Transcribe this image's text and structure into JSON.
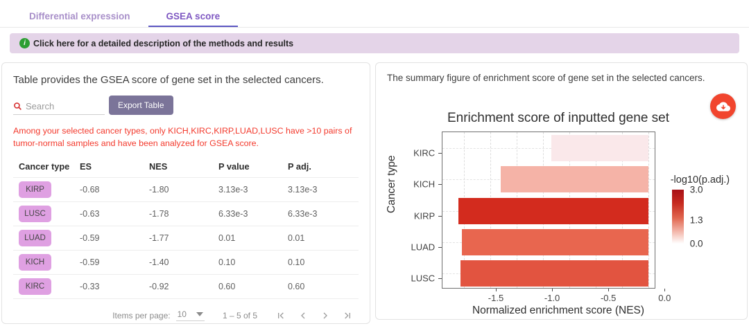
{
  "tabs": [
    {
      "label": "Differential expression",
      "active": false
    },
    {
      "label": "GSEA score",
      "active": true
    }
  ],
  "banner": {
    "text": "Click here for a detailed description of the methods and results",
    "info_glyph": "i"
  },
  "left_panel": {
    "title": "Table provides the GSEA score of gene set in the selected cancers.",
    "search_placeholder": "Search",
    "export_label": "Export Table",
    "warning": "Among your selected cancer types, only KICH,KIRC,KIRP,LUAD,LUSC have >10 pairs of tumor-normal samples and have been analyzed for GSEA score.",
    "table": {
      "headers": [
        "Cancer type",
        "ES",
        "NES",
        "P value",
        "P adj."
      ],
      "rows": [
        {
          "cancer": "KIRP",
          "es": "-0.68",
          "nes": "-1.80",
          "p": "3.13e-3",
          "padj": "3.13e-3"
        },
        {
          "cancer": "LUSC",
          "es": "-0.63",
          "nes": "-1.78",
          "p": "6.33e-3",
          "padj": "6.33e-3"
        },
        {
          "cancer": "LUAD",
          "es": "-0.59",
          "nes": "-1.77",
          "p": "0.01",
          "padj": "0.01"
        },
        {
          "cancer": "KICH",
          "es": "-0.59",
          "nes": "-1.40",
          "p": "0.10",
          "padj": "0.10"
        },
        {
          "cancer": "KIRC",
          "es": "-0.33",
          "nes": "-0.92",
          "p": "0.60",
          "padj": "0.60"
        }
      ]
    },
    "pagination": {
      "items_per_page_label": "Items per page:",
      "page_size": "10",
      "range_label": "1 – 5 of 5"
    }
  },
  "right_panel": {
    "title": "The summary figure of enrichment score of gene set in the selected cancers."
  },
  "colors": {
    "accent_purple": "#7e57c2",
    "tab_inkbar": "#5a55c2",
    "banner_bg": "#e4d4e8",
    "info_green": "#2d9e33",
    "export_btn": "#7b7499",
    "chip_bg": "#dfa0e2",
    "warning_red": "#f3392c",
    "fab_red": "#f1452e"
  },
  "chart_data": {
    "type": "bar",
    "orientation": "horizontal",
    "title": "Enrichment score of inputted gene set",
    "categories": [
      "KIRC",
      "KICH",
      "KIRP",
      "LUAD",
      "LUSC"
    ],
    "values": [
      -0.92,
      -1.4,
      -1.8,
      -1.77,
      -1.78
    ],
    "bar_colors": [
      "#fae8ea",
      "#f5b3a7",
      "#d32b1e",
      "#e8664f",
      "#e25440"
    ],
    "xlabel": "Normalized enrichment score (NES)",
    "ylabel": "Cancer type",
    "x_ticks": [
      -1.5,
      -1.0,
      -0.5,
      0.0
    ],
    "x_gridlines": [
      -1.75,
      -1.5,
      -1.25,
      -1.0,
      -0.75,
      -0.5,
      -0.25,
      0.0
    ],
    "xlim": [
      -1.95,
      0.06
    ],
    "grid": "dashed",
    "legend": {
      "title": "-log10(p.adj.)",
      "ticks": [
        "3.0",
        "1.3",
        "0.0"
      ],
      "tick_values": [
        3.0,
        1.3,
        0.0
      ],
      "range": [
        0.0,
        3.0
      ],
      "high_color": "#a81016",
      "low_color": "#ffffff",
      "position": "right"
    }
  }
}
